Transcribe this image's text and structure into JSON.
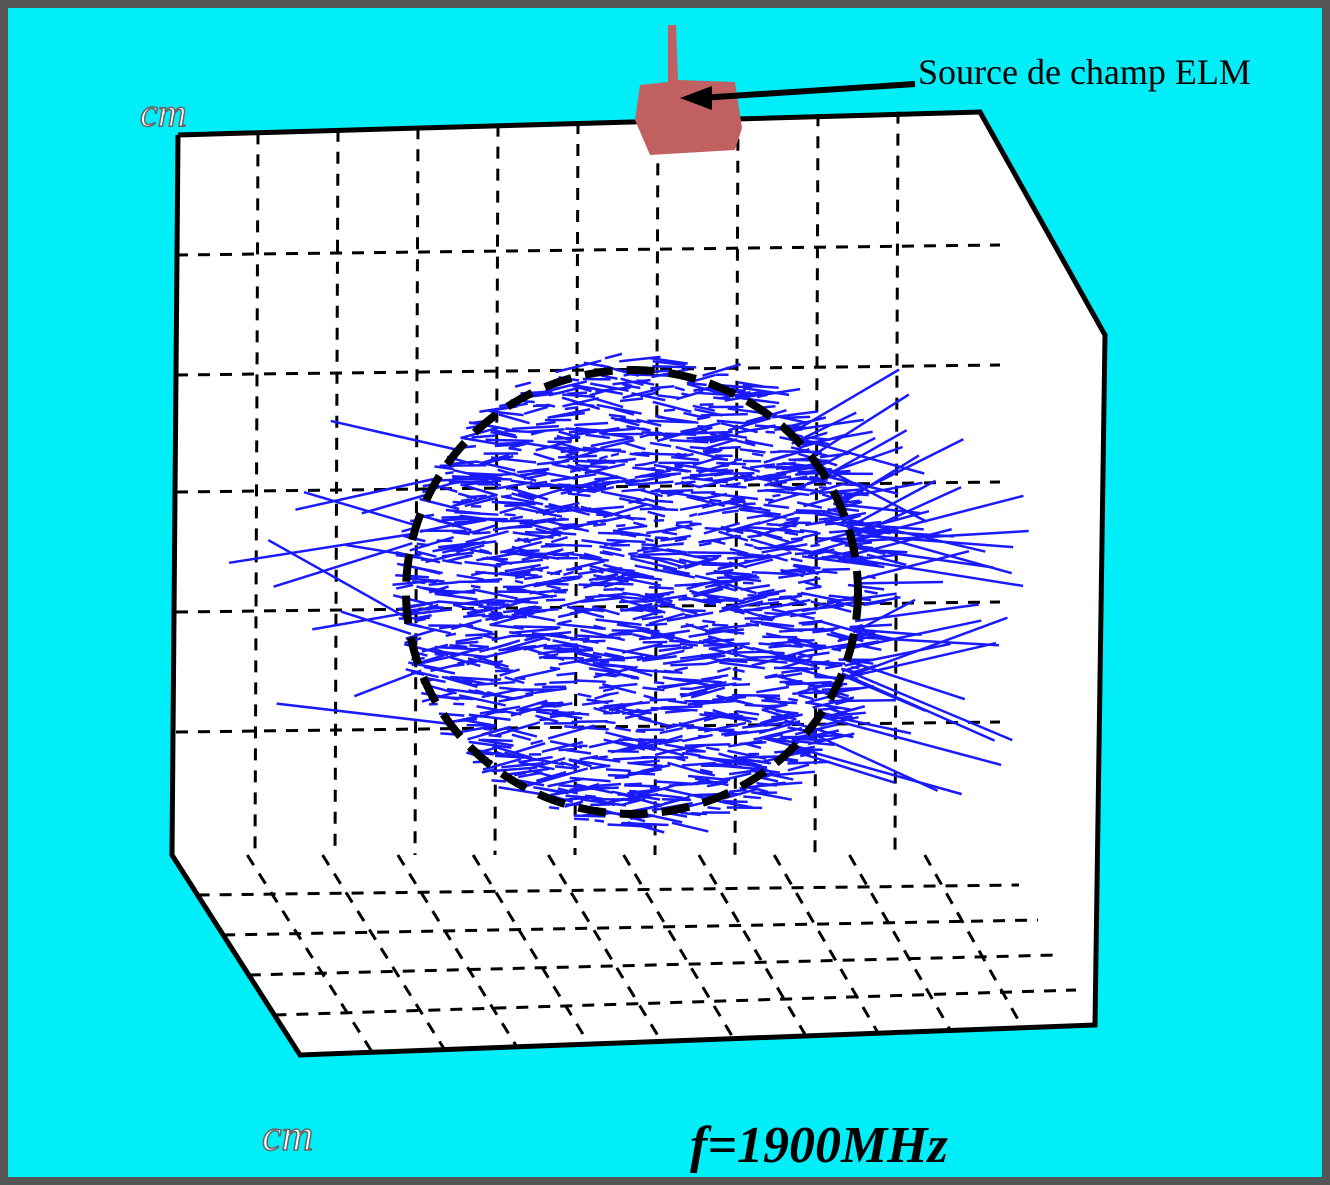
{
  "annotations": {
    "source_label": "Source de champ ELM",
    "z_unit": "cm",
    "x_unit": "cm",
    "frequency": "f=1900MHz"
  }
}
